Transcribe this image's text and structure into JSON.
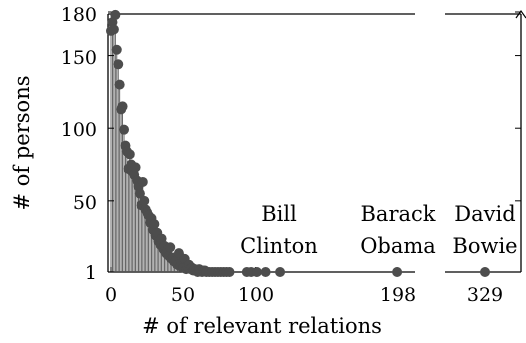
{
  "chart_data": {
    "type": "scatter",
    "xlabel": "# of relevant relations",
    "ylabel": "# of persons",
    "y_ticks": [
      "1",
      "50",
      "100",
      "150",
      "180"
    ],
    "x_ticks_left": [
      "0",
      "50",
      "100",
      "198"
    ],
    "x_ticks_right": [
      "329"
    ],
    "ylim": [
      1,
      180
    ],
    "xlim_left": [
      -2,
      210
    ],
    "xlim_right": [
      323,
      352
    ],
    "axis_break": true,
    "grid": false,
    "marker_color": "#4d4d4d",
    "points": [
      {
        "x": 0,
        "y": 167
      },
      {
        "x": 1,
        "y": 173
      },
      {
        "x": 2,
        "y": 168
      },
      {
        "x": 3,
        "y": 178
      },
      {
        "x": 4,
        "y": 154
      },
      {
        "x": 5,
        "y": 144
      },
      {
        "x": 6,
        "y": 130
      },
      {
        "x": 7,
        "y": 113
      },
      {
        "x": 8,
        "y": 115
      },
      {
        "x": 9,
        "y": 99
      },
      {
        "x": 10,
        "y": 88
      },
      {
        "x": 11,
        "y": 84
      },
      {
        "x": 12,
        "y": 72
      },
      {
        "x": 13,
        "y": 82
      },
      {
        "x": 14,
        "y": 75
      },
      {
        "x": 15,
        "y": 70
      },
      {
        "x": 16,
        "y": 68
      },
      {
        "x": 17,
        "y": 73
      },
      {
        "x": 18,
        "y": 64
      },
      {
        "x": 19,
        "y": 60
      },
      {
        "x": 20,
        "y": 55
      },
      {
        "x": 21,
        "y": 47
      },
      {
        "x": 22,
        "y": 63
      },
      {
        "x": 23,
        "y": 50
      },
      {
        "x": 24,
        "y": 44
      },
      {
        "x": 25,
        "y": 42
      },
      {
        "x": 26,
        "y": 40
      },
      {
        "x": 27,
        "y": 35
      },
      {
        "x": 28,
        "y": 38
      },
      {
        "x": 29,
        "y": 30
      },
      {
        "x": 30,
        "y": 34
      },
      {
        "x": 31,
        "y": 26
      },
      {
        "x": 32,
        "y": 28
      },
      {
        "x": 33,
        "y": 22
      },
      {
        "x": 34,
        "y": 20
      },
      {
        "x": 35,
        "y": 24
      },
      {
        "x": 36,
        "y": 17
      },
      {
        "x": 37,
        "y": 19
      },
      {
        "x": 38,
        "y": 14
      },
      {
        "x": 39,
        "y": 16
      },
      {
        "x": 40,
        "y": 12
      },
      {
        "x": 41,
        "y": 18
      },
      {
        "x": 42,
        "y": 10
      },
      {
        "x": 43,
        "y": 11
      },
      {
        "x": 44,
        "y": 8
      },
      {
        "x": 45,
        "y": 9
      },
      {
        "x": 46,
        "y": 6
      },
      {
        "x": 47,
        "y": 14
      },
      {
        "x": 48,
        "y": 5
      },
      {
        "x": 49,
        "y": 7
      },
      {
        "x": 50,
        "y": 4
      },
      {
        "x": 51,
        "y": 10
      },
      {
        "x": 52,
        "y": 3
      },
      {
        "x": 53,
        "y": 5
      },
      {
        "x": 54,
        "y": 6
      },
      {
        "x": 55,
        "y": 3
      },
      {
        "x": 56,
        "y": 4
      },
      {
        "x": 57,
        "y": 2
      },
      {
        "x": 58,
        "y": 3
      },
      {
        "x": 59,
        "y": 2
      },
      {
        "x": 60,
        "y": 1
      },
      {
        "x": 61,
        "y": 3
      },
      {
        "x": 62,
        "y": 2
      },
      {
        "x": 63,
        "y": 1
      },
      {
        "x": 64,
        "y": 2
      },
      {
        "x": 65,
        "y": 2
      },
      {
        "x": 66,
        "y": 1
      },
      {
        "x": 68,
        "y": 1
      },
      {
        "x": 70,
        "y": 1
      },
      {
        "x": 72,
        "y": 1
      },
      {
        "x": 74,
        "y": 1
      },
      {
        "x": 76,
        "y": 1
      },
      {
        "x": 78,
        "y": 1
      },
      {
        "x": 80,
        "y": 1
      },
      {
        "x": 82,
        "y": 1
      },
      {
        "x": 94,
        "y": 1
      },
      {
        "x": 97,
        "y": 1
      },
      {
        "x": 101,
        "y": 1
      },
      {
        "x": 107,
        "y": 1
      },
      {
        "x": 117,
        "y": 1
      },
      {
        "x": 198,
        "y": 1
      },
      {
        "x": 329,
        "y": 1
      }
    ],
    "annotations": [
      {
        "lines": [
          "Bill",
          "Clinton"
        ],
        "x": 107
      },
      {
        "lines": [
          "Barack",
          "Obama"
        ],
        "x": 198
      },
      {
        "lines": [
          "David",
          "Bowie"
        ],
        "x": 329
      }
    ]
  }
}
